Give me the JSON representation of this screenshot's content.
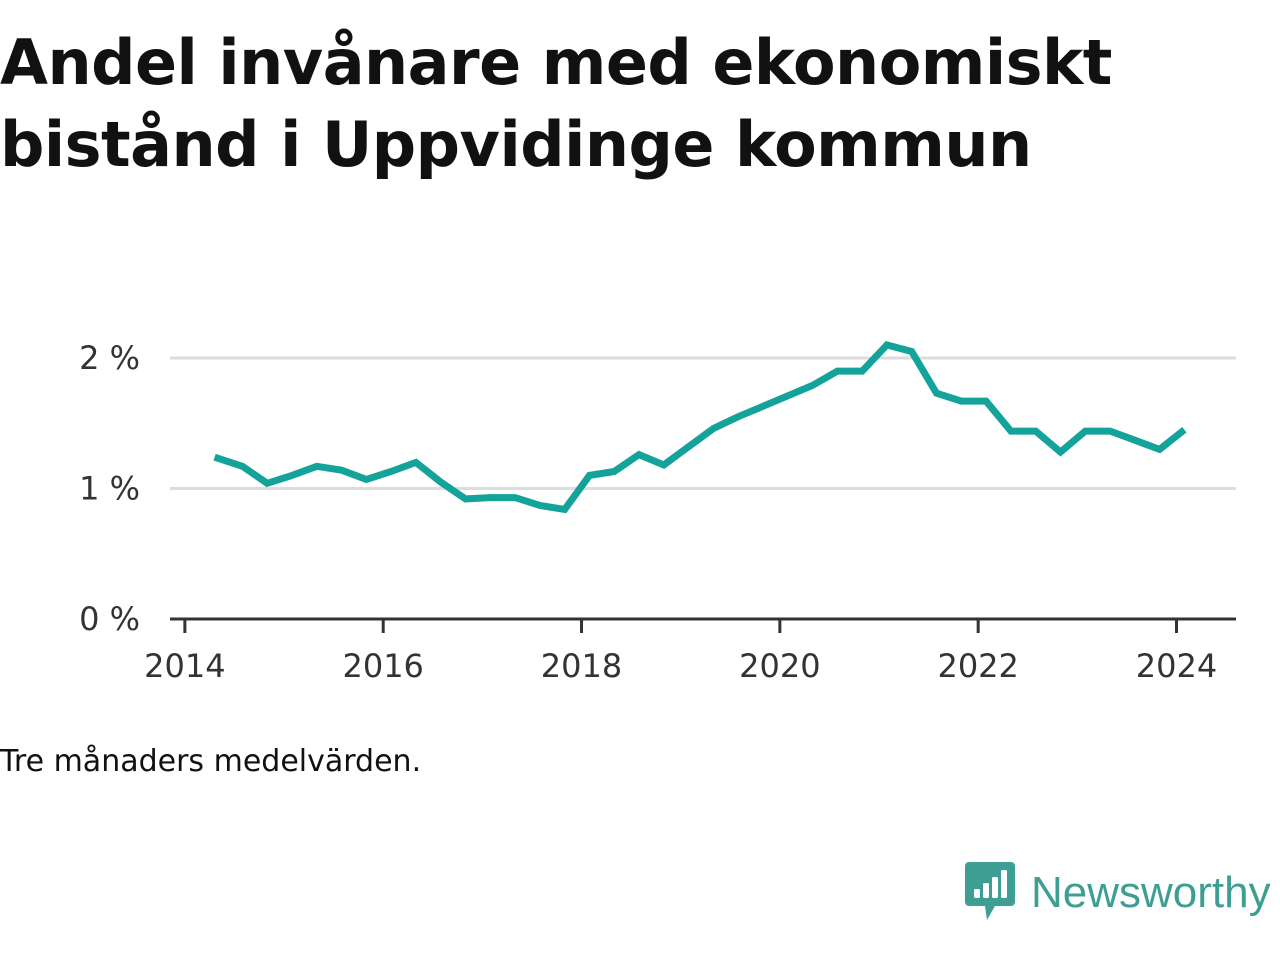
{
  "title": "Andel invånare med ekonomiskt bistånd i Uppvidinge kommun",
  "note": "Tre månaders medelvärden.",
  "brand": {
    "name": "Newsworthy",
    "color": "#3d9f93",
    "icon": "newsworthy-logo-icon"
  },
  "colors": {
    "line": "#14a39a",
    "grid": "#dddddd",
    "axis": "#333333"
  },
  "chart_data": {
    "type": "line",
    "title": "Andel invånare med ekonomiskt bistånd i Uppvidinge kommun",
    "xlabel": "",
    "ylabel": "",
    "x_ticks": [
      {
        "value": 2014,
        "label": "2014"
      },
      {
        "value": 2016,
        "label": "2016"
      },
      {
        "value": 2018,
        "label": "2018"
      },
      {
        "value": 2020,
        "label": "2020"
      },
      {
        "value": 2022,
        "label": "2022"
      },
      {
        "value": 2024,
        "label": "2024"
      }
    ],
    "y_ticks": [
      {
        "value": 0,
        "label": "0 %"
      },
      {
        "value": 1,
        "label": "1 %"
      },
      {
        "value": 2,
        "label": "2 %"
      }
    ],
    "xlim": [
      2013.85,
      2024.6
    ],
    "ylim": [
      0,
      2
    ],
    "grid": true,
    "series": [
      {
        "x": [
          2014.3,
          2014.58,
          2014.83,
          2015.08,
          2015.33,
          2015.58,
          2015.83,
          2016.08,
          2016.33,
          2016.58,
          2016.83,
          2017.08,
          2017.33,
          2017.58,
          2017.83,
          2018.08,
          2018.33,
          2018.58,
          2018.83,
          2019.08,
          2019.33,
          2019.58,
          2019.83,
          2020.08,
          2020.33,
          2020.58,
          2020.83,
          2021.08,
          2021.33,
          2021.58,
          2021.83,
          2022.08,
          2022.33,
          2022.58,
          2022.83,
          2023.08,
          2023.33,
          2023.58,
          2023.83,
          2024.08
        ],
        "values": [
          1.24,
          1.17,
          1.04,
          1.1,
          1.17,
          1.14,
          1.07,
          1.13,
          1.2,
          1.05,
          0.92,
          0.93,
          0.93,
          0.87,
          0.84,
          1.1,
          1.13,
          1.26,
          1.18,
          1.32,
          1.46,
          1.55,
          1.63,
          1.71,
          1.79,
          1.9,
          1.9,
          2.1,
          2.05,
          1.73,
          1.67,
          1.67,
          1.44,
          1.44,
          1.28,
          1.44,
          1.44,
          1.37,
          1.3,
          1.45
        ]
      }
    ]
  }
}
